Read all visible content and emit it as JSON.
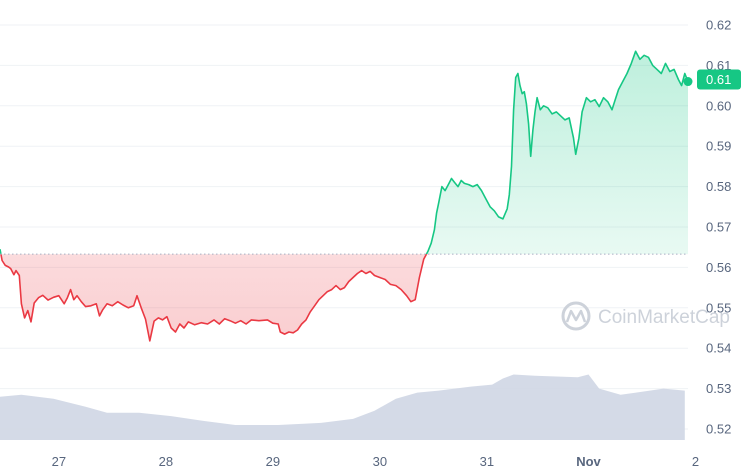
{
  "chart_data": {
    "type": "line",
    "title": "",
    "xlabel": "",
    "ylabel": "",
    "ylim": [
      0.515,
      0.625
    ],
    "yticks": [
      "0.62",
      "0.61",
      "0.60",
      "0.59",
      "0.58",
      "0.57",
      "0.56",
      "0.55",
      "0.54",
      "0.53",
      "0.52"
    ],
    "xticks": [
      {
        "label": "27",
        "t": 26.55,
        "bold": false
      },
      {
        "label": "28",
        "t": 27.55,
        "bold": false
      },
      {
        "label": "29",
        "t": 28.55,
        "bold": false
      },
      {
        "label": "30",
        "t": 29.55,
        "bold": false
      },
      {
        "label": "31",
        "t": 30.55,
        "bold": false
      },
      {
        "label": "Nov",
        "t": 31.5,
        "bold": true
      },
      {
        "label": "2",
        "t": 32.5,
        "bold": false
      }
    ],
    "reference_price": 0.5633,
    "current_price_label": "0.61",
    "current_price": 0.6065,
    "colors": {
      "up": "#16c784",
      "down": "#ea3943",
      "volume": "#cfd6e4",
      "grid": "#eff2f5",
      "badge": "#16c784"
    },
    "series": [
      {
        "values": [
          [
            26.0,
            0.5645
          ],
          [
            26.02,
            0.5617
          ],
          [
            26.05,
            0.5605
          ],
          [
            26.08,
            0.5601
          ],
          [
            26.1,
            0.5597
          ],
          [
            26.13,
            0.5582
          ],
          [
            26.15,
            0.5592
          ],
          [
            26.18,
            0.558
          ],
          [
            26.2,
            0.551
          ],
          [
            26.23,
            0.5475
          ],
          [
            26.26,
            0.5493
          ],
          [
            26.29,
            0.5465
          ],
          [
            26.32,
            0.5512
          ],
          [
            26.36,
            0.5525
          ],
          [
            26.4,
            0.5531
          ],
          [
            26.45,
            0.5519
          ],
          [
            26.5,
            0.5526
          ],
          [
            26.55,
            0.553
          ],
          [
            26.6,
            0.551
          ],
          [
            26.63,
            0.5525
          ],
          [
            26.66,
            0.5545
          ],
          [
            26.69,
            0.552
          ],
          [
            26.72,
            0.553
          ],
          [
            26.76,
            0.5515
          ],
          [
            26.8,
            0.5503
          ],
          [
            26.85,
            0.5505
          ],
          [
            26.9,
            0.551
          ],
          [
            26.93,
            0.548
          ],
          [
            26.96,
            0.5495
          ],
          [
            27.0,
            0.551
          ],
          [
            27.05,
            0.5505
          ],
          [
            27.1,
            0.5515
          ],
          [
            27.15,
            0.5507
          ],
          [
            27.2,
            0.55
          ],
          [
            27.25,
            0.5505
          ],
          [
            27.28,
            0.553
          ],
          [
            27.32,
            0.55
          ],
          [
            27.36,
            0.5472
          ],
          [
            27.4,
            0.5418
          ],
          [
            27.44,
            0.5467
          ],
          [
            27.48,
            0.5475
          ],
          [
            27.52,
            0.547
          ],
          [
            27.56,
            0.5478
          ],
          [
            27.6,
            0.545
          ],
          [
            27.64,
            0.544
          ],
          [
            27.68,
            0.546
          ],
          [
            27.72,
            0.545
          ],
          [
            27.76,
            0.5465
          ],
          [
            27.82,
            0.5458
          ],
          [
            27.88,
            0.5463
          ],
          [
            27.94,
            0.546
          ],
          [
            28.0,
            0.547
          ],
          [
            28.05,
            0.546
          ],
          [
            28.1,
            0.5473
          ],
          [
            28.15,
            0.5468
          ],
          [
            28.2,
            0.5462
          ],
          [
            28.25,
            0.5468
          ],
          [
            28.3,
            0.546
          ],
          [
            28.35,
            0.547
          ],
          [
            28.42,
            0.5468
          ],
          [
            28.5,
            0.547
          ],
          [
            28.55,
            0.5462
          ],
          [
            28.6,
            0.546
          ],
          [
            28.62,
            0.544
          ],
          [
            28.66,
            0.5435
          ],
          [
            28.7,
            0.544
          ],
          [
            28.74,
            0.5438
          ],
          [
            28.78,
            0.5445
          ],
          [
            28.82,
            0.546
          ],
          [
            28.86,
            0.547
          ],
          [
            28.9,
            0.549
          ],
          [
            28.94,
            0.5505
          ],
          [
            28.98,
            0.552
          ],
          [
            29.02,
            0.553
          ],
          [
            29.06,
            0.554
          ],
          [
            29.1,
            0.5545
          ],
          [
            29.14,
            0.5555
          ],
          [
            29.18,
            0.5545
          ],
          [
            29.22,
            0.555
          ],
          [
            29.26,
            0.5565
          ],
          [
            29.3,
            0.5575
          ],
          [
            29.34,
            0.5585
          ],
          [
            29.38,
            0.5592
          ],
          [
            29.42,
            0.5585
          ],
          [
            29.46,
            0.559
          ],
          [
            29.5,
            0.558
          ],
          [
            29.55,
            0.5575
          ],
          [
            29.6,
            0.557
          ],
          [
            29.65,
            0.5558
          ],
          [
            29.7,
            0.5555
          ],
          [
            29.75,
            0.5545
          ],
          [
            29.8,
            0.553
          ],
          [
            29.84,
            0.5515
          ],
          [
            29.88,
            0.552
          ],
          [
            29.92,
            0.5575
          ],
          [
            29.96,
            0.562
          ],
          [
            30.0,
            0.564
          ],
          [
            30.03,
            0.566
          ],
          [
            30.06,
            0.5693
          ],
          [
            30.08,
            0.5735
          ],
          [
            30.1,
            0.576
          ],
          [
            30.13,
            0.58
          ],
          [
            30.16,
            0.579
          ],
          [
            30.19,
            0.5805
          ],
          [
            30.22,
            0.582
          ],
          [
            30.25,
            0.581
          ],
          [
            30.28,
            0.58
          ],
          [
            30.31,
            0.5815
          ],
          [
            30.34,
            0.5808
          ],
          [
            30.38,
            0.5805
          ],
          [
            30.42,
            0.58
          ],
          [
            30.46,
            0.5805
          ],
          [
            30.5,
            0.579
          ],
          [
            30.54,
            0.577
          ],
          [
            30.58,
            0.575
          ],
          [
            30.62,
            0.574
          ],
          [
            30.66,
            0.5725
          ],
          [
            30.7,
            0.572
          ],
          [
            30.74,
            0.5745
          ],
          [
            30.76,
            0.578
          ],
          [
            30.78,
            0.585
          ],
          [
            30.8,
            0.599
          ],
          [
            30.82,
            0.607
          ],
          [
            30.84,
            0.608
          ],
          [
            30.86,
            0.605
          ],
          [
            30.88,
            0.603
          ],
          [
            30.9,
            0.6035
          ],
          [
            30.92,
            0.6005
          ],
          [
            30.94,
            0.5955
          ],
          [
            30.96,
            0.5875
          ],
          [
            30.98,
            0.594
          ],
          [
            31.0,
            0.5985
          ],
          [
            31.02,
            0.602
          ],
          [
            31.05,
            0.599
          ],
          [
            31.08,
            0.6
          ],
          [
            31.12,
            0.5995
          ],
          [
            31.16,
            0.598
          ],
          [
            31.2,
            0.5985
          ],
          [
            31.24,
            0.5975
          ],
          [
            31.28,
            0.5965
          ],
          [
            31.32,
            0.597
          ],
          [
            31.36,
            0.592
          ],
          [
            31.38,
            0.588
          ],
          [
            31.41,
            0.592
          ],
          [
            31.44,
            0.5985
          ],
          [
            31.48,
            0.602
          ],
          [
            31.52,
            0.601
          ],
          [
            31.56,
            0.6015
          ],
          [
            31.6,
            0.5998
          ],
          [
            31.64,
            0.602
          ],
          [
            31.68,
            0.601
          ],
          [
            31.72,
            0.599
          ],
          [
            31.75,
            0.6015
          ],
          [
            31.78,
            0.604
          ],
          [
            31.82,
            0.606
          ],
          [
            31.86,
            0.608
          ],
          [
            31.9,
            0.6105
          ],
          [
            31.94,
            0.6135
          ],
          [
            31.98,
            0.6115
          ],
          [
            32.02,
            0.6125
          ],
          [
            32.06,
            0.612
          ],
          [
            32.1,
            0.61
          ],
          [
            32.14,
            0.609
          ],
          [
            32.18,
            0.608
          ],
          [
            32.22,
            0.6105
          ],
          [
            32.26,
            0.6085
          ],
          [
            32.3,
            0.609
          ],
          [
            32.34,
            0.6065
          ],
          [
            32.37,
            0.605
          ],
          [
            32.4,
            0.608
          ],
          [
            32.43,
            0.606
          ]
        ]
      }
    ],
    "volume": [
      [
        26.0,
        0.528
      ],
      [
        26.2,
        0.5285
      ],
      [
        26.5,
        0.5275
      ],
      [
        26.8,
        0.5255
      ],
      [
        27.0,
        0.524
      ],
      [
        27.3,
        0.524
      ],
      [
        27.6,
        0.5232
      ],
      [
        27.9,
        0.522
      ],
      [
        28.2,
        0.521
      ],
      [
        28.6,
        0.521
      ],
      [
        29.0,
        0.5215
      ],
      [
        29.3,
        0.5225
      ],
      [
        29.5,
        0.5245
      ],
      [
        29.7,
        0.5275
      ],
      [
        29.9,
        0.529
      ],
      [
        30.1,
        0.5295
      ],
      [
        30.4,
        0.5305
      ],
      [
        30.6,
        0.531
      ],
      [
        30.7,
        0.5325
      ],
      [
        30.8,
        0.5335
      ],
      [
        31.0,
        0.5332
      ],
      [
        31.2,
        0.533
      ],
      [
        31.4,
        0.5328
      ],
      [
        31.5,
        0.5335
      ],
      [
        31.6,
        0.53
      ],
      [
        31.8,
        0.5285
      ],
      [
        32.0,
        0.5292
      ],
      [
        32.2,
        0.53
      ],
      [
        32.4,
        0.5295
      ]
    ],
    "watermark": "CoinMarketCap"
  }
}
